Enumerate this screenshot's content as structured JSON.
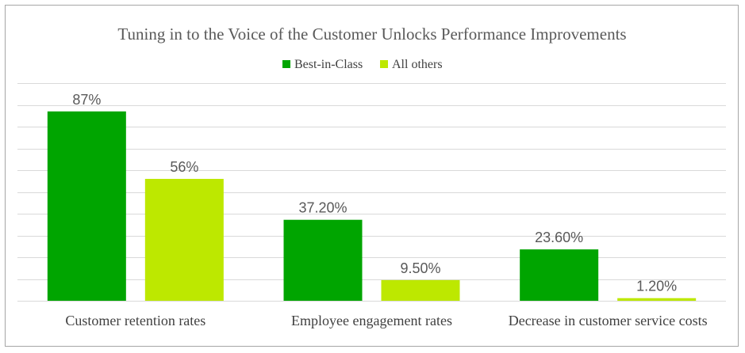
{
  "chart_data": {
    "type": "bar",
    "title": "Tuning in to the Voice of the Customer Unlocks Performance Improvements",
    "categories": [
      "Customer retention rates",
      "Employee engagement rates",
      "Decrease in customer service costs"
    ],
    "series": [
      {
        "name": "Best-in-Class",
        "values": [
          87,
          37.2,
          23.6
        ],
        "labels": [
          "87%",
          "37.20%",
          "23.60%"
        ],
        "color": "#00a500"
      },
      {
        "name": "All others",
        "values": [
          56,
          9.5,
          1.2
        ],
        "labels": [
          "56%",
          "9.50%",
          "1.20%"
        ],
        "color": "#bde800"
      }
    ],
    "ylim": [
      0,
      100
    ],
    "y_axis_labels_shown": false,
    "grid": true,
    "legend_position": "top"
  }
}
